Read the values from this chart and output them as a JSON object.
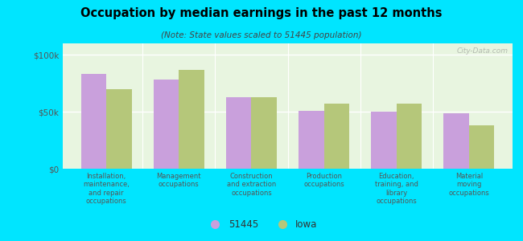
{
  "title": "Occupation by median earnings in the past 12 months",
  "subtitle": "(Note: State values scaled to 51445 population)",
  "categories": [
    "Installation,\nmaintenance,\nand repair\noccupations",
    "Management\noccupations",
    "Construction\nand extraction\noccupations",
    "Production\noccupations",
    "Education,\ntraining, and\nlibrary\noccupations",
    "Material\nmoving\noccupations"
  ],
  "values_51445": [
    83000,
    78000,
    63000,
    51000,
    50000,
    49000
  ],
  "values_iowa": [
    70000,
    87000,
    63000,
    57000,
    57000,
    38000
  ],
  "color_51445": "#c9a0dc",
  "color_iowa": "#b5c77a",
  "background_plot": "#e8f5e0",
  "background_fig": "#00e5ff",
  "yticks": [
    0,
    50000,
    100000
  ],
  "ytick_labels": [
    "$0",
    "$50k",
    "$100k"
  ],
  "ylim": [
    0,
    110000
  ],
  "legend_label_51445": "51445",
  "legend_label_iowa": "Iowa",
  "watermark": "City-Data.com",
  "bar_width": 0.35
}
